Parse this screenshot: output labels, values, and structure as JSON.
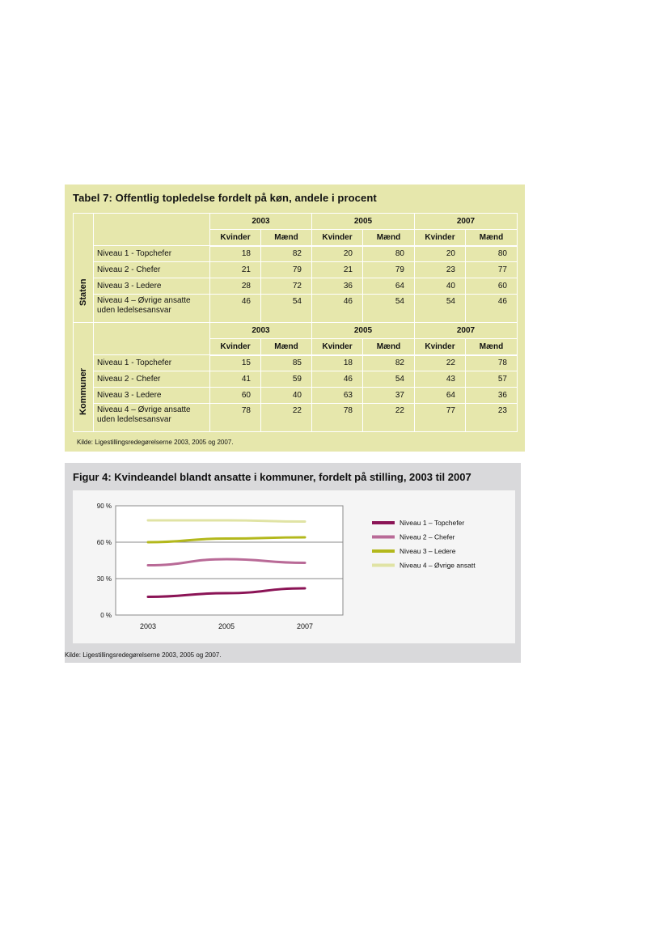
{
  "table7": {
    "title": "Tabel 7: Offentlig topledelse fordelt på køn, andele i procent",
    "years": [
      "2003",
      "2005",
      "2007"
    ],
    "sub_headers": [
      "Kvinder",
      "Mænd"
    ],
    "sections": [
      {
        "name": "Staten",
        "rows": [
          {
            "label": "Niveau 1 - Topchefer",
            "values": [
              "18",
              "82",
              "20",
              "80",
              "20",
              "80"
            ]
          },
          {
            "label": "Niveau 2 - Chefer",
            "values": [
              "21",
              "79",
              "21",
              "79",
              "23",
              "77"
            ]
          },
          {
            "label": "Niveau 3 - Ledere",
            "values": [
              "28",
              "72",
              "36",
              "64",
              "40",
              "60"
            ]
          },
          {
            "label": "Niveau 4 – Øvrige ansatte uden ledelsesansvar",
            "values": [
              "46",
              "54",
              "46",
              "54",
              "54",
              "46"
            ]
          }
        ]
      },
      {
        "name": "Kommuner",
        "rows": [
          {
            "label": "Niveau 1 - Topchefer",
            "values": [
              "15",
              "85",
              "18",
              "82",
              "22",
              "78"
            ]
          },
          {
            "label": "Niveau 2 - Chefer",
            "values": [
              "41",
              "59",
              "46",
              "54",
              "43",
              "57"
            ]
          },
          {
            "label": "Niveau 3 - Ledere",
            "values": [
              "60",
              "40",
              "63",
              "37",
              "64",
              "36"
            ]
          },
          {
            "label": "Niveau 4 – Øvrige ansatte uden ledelsesansvar",
            "values": [
              "78",
              "22",
              "78",
              "22",
              "77",
              "23"
            ]
          }
        ]
      }
    ],
    "source": "Kilde: Ligestillingsredegørelserne 2003, 2005 og 2007."
  },
  "figure4": {
    "title": "Figur 4: Kvindeandel blandt ansatte i kommuner, fordelt på stilling, 2003 til 2007",
    "source": "Kilde: Ligestillingsredegørelserne 2003, 2005 og 2007."
  },
  "chart_data": {
    "type": "line",
    "title": "Figur 4: Kvindeandel blandt ansatte i kommuner, fordelt på stilling, 2003 til 2007",
    "xlabel": "",
    "ylabel": "",
    "x": [
      "2003",
      "2005",
      "2007"
    ],
    "y_ticks": [
      "0 %",
      "30 %",
      "60 %",
      "90 %"
    ],
    "ylim": [
      0,
      90
    ],
    "grid": "horizontal",
    "legend_position": "right",
    "series": [
      {
        "name": "Niveau 1 – Topchefer",
        "values": [
          15,
          18,
          22
        ],
        "color": "#8b1456"
      },
      {
        "name": "Niveau 2 – Chefer",
        "values": [
          41,
          46,
          43
        ],
        "color": "#b96a97"
      },
      {
        "name": "Niveau 3 – Ledere",
        "values": [
          60,
          63,
          64
        ],
        "color": "#b3b81c"
      },
      {
        "name": "Niveau 4 – Øvrige ansatt",
        "values": [
          78,
          78,
          77
        ],
        "color": "#e0e3a4"
      }
    ]
  }
}
